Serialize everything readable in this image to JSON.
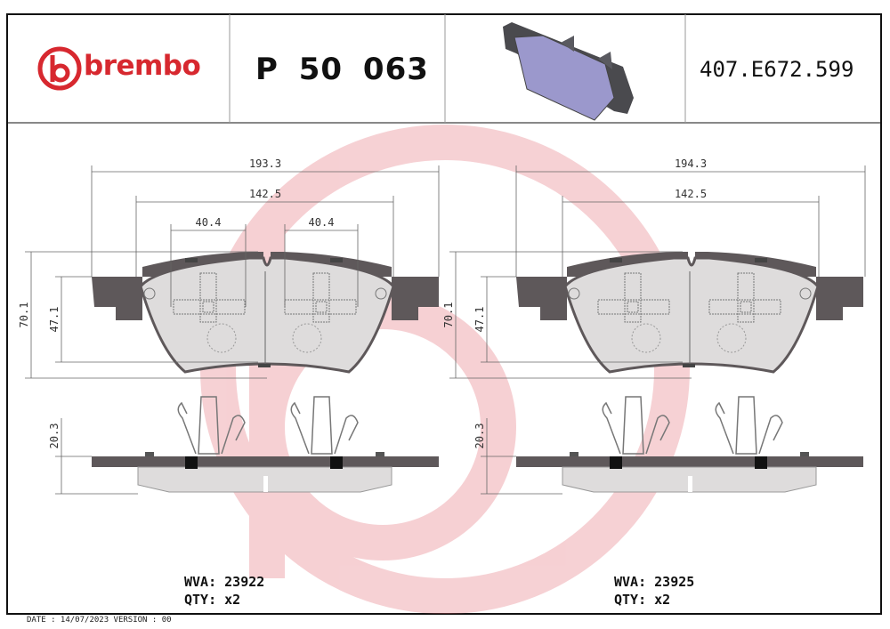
{
  "header": {
    "brand": "brembo",
    "part_number": "P 50 063",
    "reference": "407.E672.599",
    "brand_color": "#d7282f"
  },
  "left_pad": {
    "dims": {
      "overall_width": "193.3",
      "friction_width": "142.5",
      "clip_left": "40.4",
      "clip_right": "40.4",
      "overall_height": "70.1",
      "friction_height": "47.1",
      "thickness": "20.3"
    },
    "wva_label": "WVA:",
    "wva": "23922",
    "qty_label": "QTY:",
    "qty": "x2"
  },
  "right_pad": {
    "dims": {
      "overall_width": "194.3",
      "friction_width": "142.5",
      "overall_height": "70.1",
      "friction_height": "47.1",
      "thickness": "20.3"
    },
    "wva_label": "WVA:",
    "wva": "23925",
    "qty_label": "QTY:",
    "qty": "x2"
  },
  "footer": {
    "text": "DATE : 14/07/2023 VERSION : 00"
  }
}
